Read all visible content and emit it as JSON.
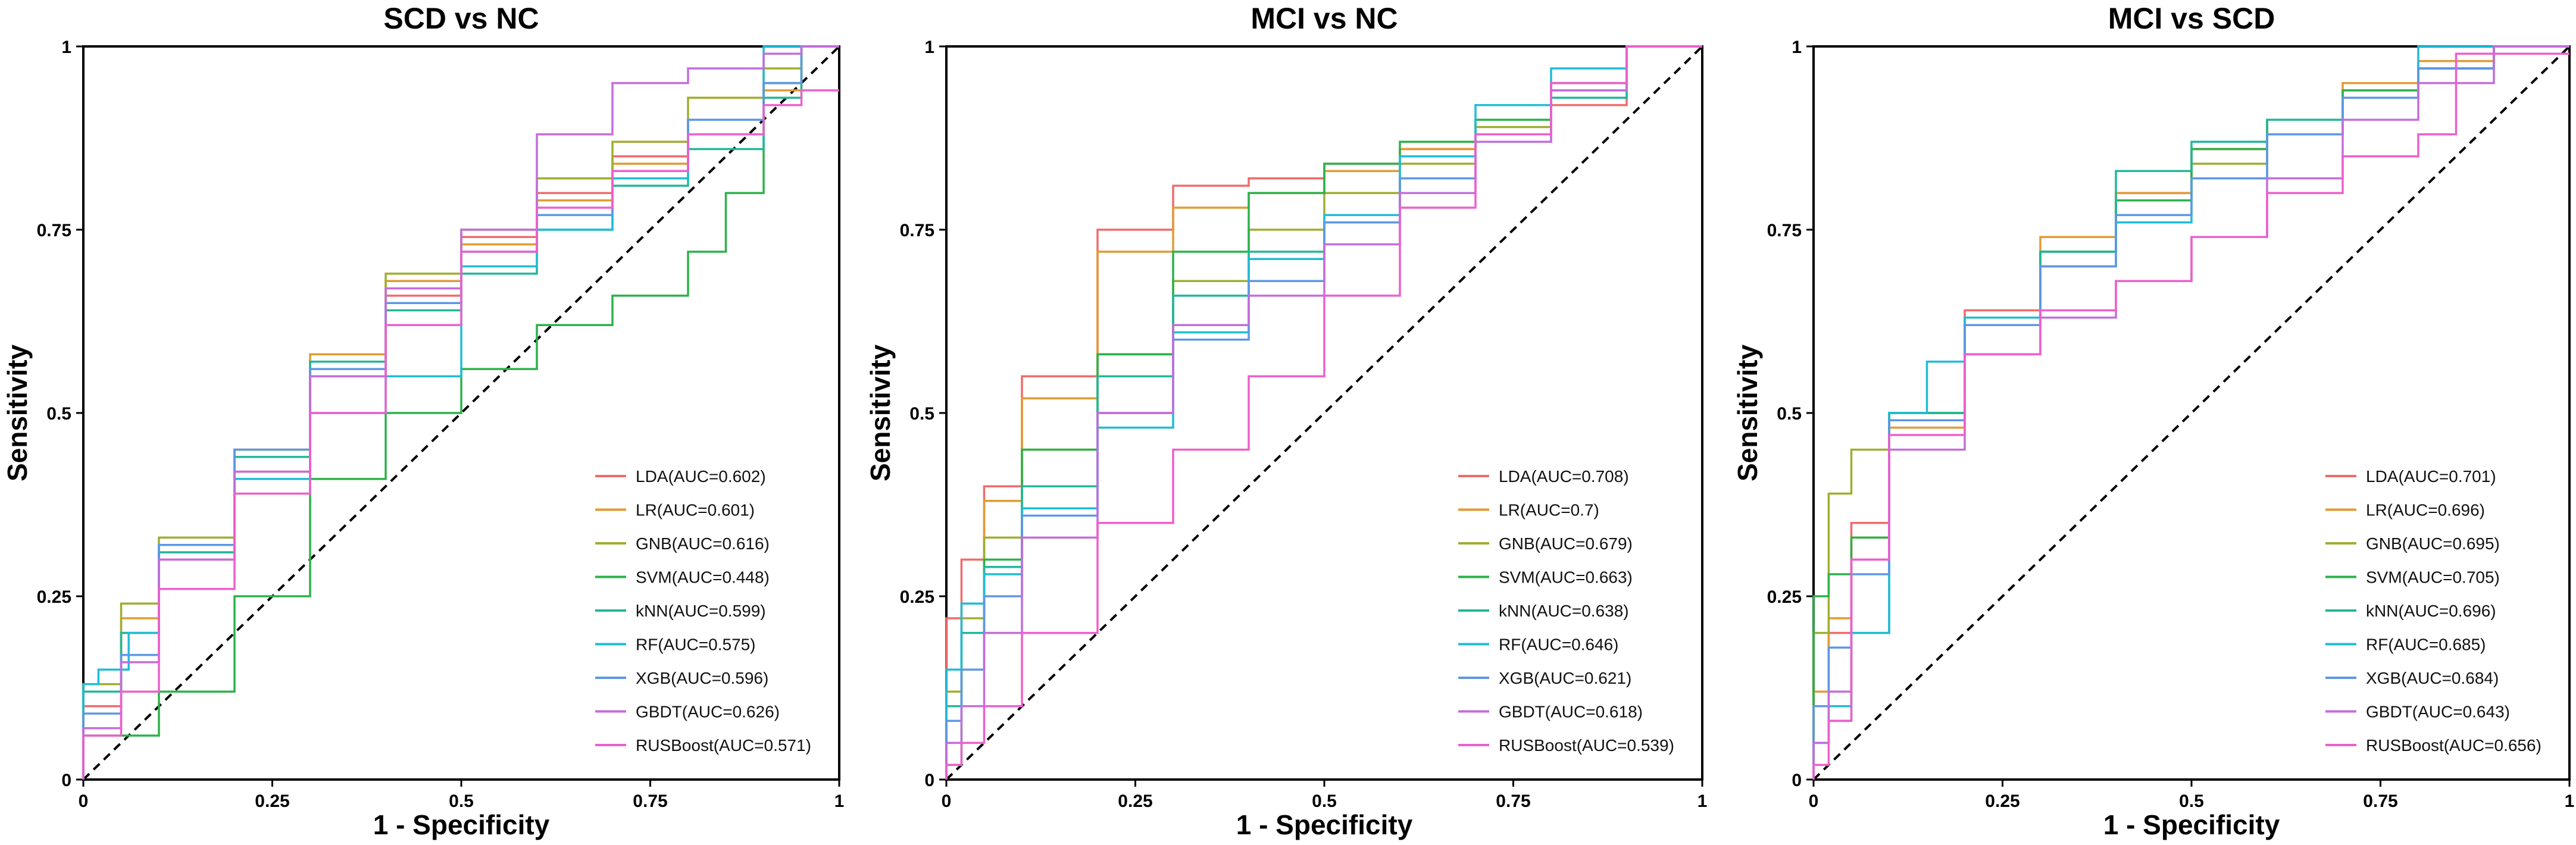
{
  "figure": {
    "name": "roc-curves-three-panels"
  },
  "chart_data": [
    {
      "type": "line",
      "title": "SCD vs NC",
      "xlabel": "1 - Specificity",
      "ylabel": "Sensitivity",
      "xlim": [
        0,
        1
      ],
      "ylim": [
        0,
        1
      ],
      "xticks": [
        "0",
        "0.25",
        "0.5",
        "0.75",
        "1"
      ],
      "yticks": [
        "0",
        "0.25",
        "0.5",
        "0.75",
        "1"
      ],
      "legend_position": "bottom-right",
      "reference_line": "diagonal",
      "series": [
        {
          "name": "LDA(AUC=0.602)",
          "color": "#f06b6b",
          "x": [
            0,
            0.05,
            0.1,
            0.2,
            0.3,
            0.4,
            0.5,
            0.6,
            0.7,
            0.8,
            0.9,
            0.95,
            1
          ],
          "y": [
            0,
            0.1,
            0.2,
            0.3,
            0.42,
            0.55,
            0.66,
            0.74,
            0.8,
            0.85,
            0.9,
            0.95,
            1
          ]
        },
        {
          "name": "LR(AUC=0.601)",
          "color": "#e39a32",
          "x": [
            0,
            0.05,
            0.1,
            0.2,
            0.3,
            0.4,
            0.5,
            0.6,
            0.7,
            0.8,
            0.9,
            0.95,
            1
          ],
          "y": [
            0,
            0.12,
            0.22,
            0.31,
            0.45,
            0.58,
            0.68,
            0.73,
            0.79,
            0.84,
            0.88,
            0.94,
            1
          ]
        },
        {
          "name": "GNB(AUC=0.616)",
          "color": "#9fae2e",
          "x": [
            0,
            0.05,
            0.1,
            0.2,
            0.3,
            0.4,
            0.5,
            0.6,
            0.7,
            0.8,
            0.9,
            0.95,
            1
          ],
          "y": [
            0,
            0.13,
            0.24,
            0.33,
            0.45,
            0.57,
            0.69,
            0.75,
            0.82,
            0.87,
            0.93,
            0.97,
            1
          ]
        },
        {
          "name": "SVM(AUC=0.448)",
          "color": "#2bb24a",
          "x": [
            0,
            0.1,
            0.2,
            0.3,
            0.4,
            0.5,
            0.6,
            0.7,
            0.8,
            0.85,
            0.9,
            0.95,
            1
          ],
          "y": [
            0,
            0.06,
            0.12,
            0.25,
            0.41,
            0.5,
            0.56,
            0.62,
            0.66,
            0.72,
            0.8,
            0.95,
            1
          ]
        },
        {
          "name": "kNN(AUC=0.599)",
          "color": "#22b79a",
          "x": [
            0,
            0.05,
            0.1,
            0.2,
            0.3,
            0.4,
            0.5,
            0.6,
            0.7,
            0.8,
            0.9,
            0.95,
            1
          ],
          "y": [
            0,
            0.12,
            0.2,
            0.31,
            0.44,
            0.57,
            0.64,
            0.69,
            0.75,
            0.81,
            0.86,
            0.93,
            1
          ]
        },
        {
          "name": "RF(AUC=0.575)",
          "color": "#1fbcd8",
          "x": [
            0,
            0.02,
            0.06,
            0.1,
            0.2,
            0.3,
            0.4,
            0.5,
            0.6,
            0.7,
            0.8,
            0.9,
            1
          ],
          "y": [
            0,
            0.13,
            0.15,
            0.2,
            0.32,
            0.41,
            0.5,
            0.55,
            0.7,
            0.75,
            0.82,
            0.9,
            1
          ]
        },
        {
          "name": "XGB(AUC=0.596)",
          "color": "#5e97e6",
          "x": [
            0,
            0.05,
            0.1,
            0.2,
            0.3,
            0.4,
            0.5,
            0.6,
            0.7,
            0.8,
            0.9,
            0.95,
            1
          ],
          "y": [
            0,
            0.09,
            0.17,
            0.32,
            0.45,
            0.56,
            0.65,
            0.72,
            0.77,
            0.83,
            0.9,
            0.95,
            1
          ]
        },
        {
          "name": "GBDT(AUC=0.626)",
          "color": "#c46ddc",
          "x": [
            0,
            0.05,
            0.1,
            0.2,
            0.3,
            0.4,
            0.5,
            0.6,
            0.7,
            0.8,
            0.9,
            0.95,
            1
          ],
          "y": [
            0,
            0.07,
            0.16,
            0.3,
            0.42,
            0.55,
            0.67,
            0.75,
            0.88,
            0.95,
            0.97,
            0.99,
            1
          ]
        },
        {
          "name": "RUSBoost(AUC=0.571)",
          "color": "#ee5fcb",
          "x": [
            0,
            0.05,
            0.1,
            0.2,
            0.3,
            0.4,
            0.5,
            0.6,
            0.7,
            0.8,
            0.9,
            0.95,
            1
          ],
          "y": [
            0,
            0.06,
            0.12,
            0.26,
            0.39,
            0.5,
            0.62,
            0.72,
            0.78,
            0.83,
            0.88,
            0.92,
            0.94
          ]
        }
      ]
    },
    {
      "type": "line",
      "title": "MCI vs NC",
      "xlabel": "1 - Specificity",
      "ylabel": "Sensitivity",
      "xlim": [
        0,
        1
      ],
      "ylim": [
        0,
        1
      ],
      "xticks": [
        "0",
        "0.25",
        "0.5",
        "0.75",
        "1"
      ],
      "yticks": [
        "0",
        "0.25",
        "0.5",
        "0.75",
        "1"
      ],
      "legend_position": "bottom-right",
      "reference_line": "diagonal",
      "series": [
        {
          "name": "LDA(AUC=0.708)",
          "color": "#f06b6b",
          "x": [
            0,
            0.02,
            0.05,
            0.1,
            0.2,
            0.3,
            0.4,
            0.5,
            0.6,
            0.7,
            0.8,
            0.9,
            1
          ],
          "y": [
            0,
            0.22,
            0.3,
            0.4,
            0.55,
            0.75,
            0.81,
            0.82,
            0.84,
            0.86,
            0.87,
            0.92,
            1
          ]
        },
        {
          "name": "LR(AUC=0.7)",
          "color": "#e39a32",
          "x": [
            0,
            0.02,
            0.05,
            0.1,
            0.2,
            0.3,
            0.4,
            0.5,
            0.6,
            0.7,
            0.8,
            0.9,
            1
          ],
          "y": [
            0,
            0.12,
            0.24,
            0.38,
            0.52,
            0.72,
            0.78,
            0.8,
            0.83,
            0.86,
            0.9,
            0.95,
            1
          ]
        },
        {
          "name": "GNB(AUC=0.679)",
          "color": "#9fae2e",
          "x": [
            0,
            0.02,
            0.05,
            0.1,
            0.2,
            0.3,
            0.4,
            0.5,
            0.6,
            0.7,
            0.8,
            0.9,
            1
          ],
          "y": [
            0,
            0.12,
            0.22,
            0.33,
            0.45,
            0.58,
            0.68,
            0.75,
            0.8,
            0.84,
            0.89,
            0.94,
            1
          ]
        },
        {
          "name": "SVM(AUC=0.663)",
          "color": "#2bb24a",
          "x": [
            0,
            0.02,
            0.05,
            0.1,
            0.2,
            0.3,
            0.4,
            0.5,
            0.6,
            0.7,
            0.8,
            0.9,
            1
          ],
          "y": [
            0,
            0.02,
            0.15,
            0.3,
            0.45,
            0.58,
            0.72,
            0.8,
            0.84,
            0.87,
            0.9,
            0.95,
            1
          ]
        },
        {
          "name": "kNN(AUC=0.638)",
          "color": "#22b79a",
          "x": [
            0,
            0.02,
            0.05,
            0.1,
            0.2,
            0.3,
            0.4,
            0.5,
            0.6,
            0.7,
            0.8,
            0.9,
            1
          ],
          "y": [
            0,
            0.1,
            0.2,
            0.29,
            0.4,
            0.55,
            0.66,
            0.72,
            0.76,
            0.82,
            0.88,
            0.93,
            1
          ]
        },
        {
          "name": "RF(AUC=0.646)",
          "color": "#1fbcd8",
          "x": [
            0,
            0.02,
            0.05,
            0.1,
            0.2,
            0.3,
            0.4,
            0.5,
            0.6,
            0.7,
            0.8,
            0.9,
            1
          ],
          "y": [
            0,
            0.15,
            0.24,
            0.28,
            0.37,
            0.48,
            0.61,
            0.71,
            0.77,
            0.85,
            0.92,
            0.97,
            1
          ]
        },
        {
          "name": "XGB(AUC=0.621)",
          "color": "#5e97e6",
          "x": [
            0,
            0.02,
            0.05,
            0.1,
            0.2,
            0.3,
            0.4,
            0.5,
            0.6,
            0.7,
            0.8,
            0.9,
            1
          ],
          "y": [
            0,
            0.08,
            0.15,
            0.25,
            0.36,
            0.5,
            0.6,
            0.68,
            0.76,
            0.82,
            0.88,
            0.94,
            1
          ]
        },
        {
          "name": "GBDT(AUC=0.618)",
          "color": "#c46ddc",
          "x": [
            0,
            0.02,
            0.05,
            0.1,
            0.2,
            0.3,
            0.4,
            0.5,
            0.6,
            0.7,
            0.8,
            0.9,
            1
          ],
          "y": [
            0,
            0.05,
            0.1,
            0.2,
            0.33,
            0.5,
            0.62,
            0.66,
            0.73,
            0.8,
            0.87,
            0.94,
            1
          ]
        },
        {
          "name": "RUSBoost(AUC=0.539)",
          "color": "#ee5fcb",
          "x": [
            0,
            0.02,
            0.05,
            0.1,
            0.2,
            0.3,
            0.4,
            0.5,
            0.6,
            0.7,
            0.8,
            0.9,
            1
          ],
          "y": [
            0,
            0.02,
            0.05,
            0.1,
            0.2,
            0.35,
            0.45,
            0.55,
            0.66,
            0.78,
            0.88,
            0.95,
            1
          ]
        }
      ]
    },
    {
      "type": "line",
      "title": "MCI vs SCD",
      "xlabel": "1 - Specificity",
      "ylabel": "Sensitivity",
      "xlim": [
        0,
        1
      ],
      "ylim": [
        0,
        1
      ],
      "xticks": [
        "0",
        "0.25",
        "0.5",
        "0.75",
        "1"
      ],
      "yticks": [
        "0",
        "0.25",
        "0.5",
        "0.75",
        "1"
      ],
      "legend_position": "bottom-right",
      "reference_line": "diagonal",
      "series": [
        {
          "name": "LDA(AUC=0.701)",
          "color": "#f06b6b",
          "x": [
            0,
            0.02,
            0.05,
            0.1,
            0.2,
            0.3,
            0.4,
            0.5,
            0.6,
            0.7,
            0.8,
            0.9,
            1
          ],
          "y": [
            0,
            0.1,
            0.2,
            0.35,
            0.5,
            0.64,
            0.72,
            0.8,
            0.86,
            0.9,
            0.94,
            0.97,
            1
          ]
        },
        {
          "name": "LR(AUC=0.696)",
          "color": "#e39a32",
          "x": [
            0,
            0.02,
            0.05,
            0.1,
            0.2,
            0.3,
            0.4,
            0.5,
            0.6,
            0.7,
            0.8,
            0.9,
            1
          ],
          "y": [
            0,
            0.12,
            0.22,
            0.33,
            0.48,
            0.63,
            0.74,
            0.8,
            0.86,
            0.9,
            0.95,
            0.98,
            1
          ]
        },
        {
          "name": "GNB(AUC=0.695)",
          "color": "#9fae2e",
          "x": [
            0,
            0.02,
            0.05,
            0.1,
            0.2,
            0.3,
            0.4,
            0.5,
            0.6,
            0.7,
            0.8,
            0.9,
            1
          ],
          "y": [
            0,
            0.2,
            0.39,
            0.45,
            0.5,
            0.62,
            0.72,
            0.79,
            0.84,
            0.88,
            0.93,
            0.97,
            1
          ]
        },
        {
          "name": "SVM(AUC=0.705)",
          "color": "#2bb24a",
          "x": [
            0,
            0.02,
            0.05,
            0.1,
            0.2,
            0.3,
            0.4,
            0.5,
            0.6,
            0.7,
            0.8,
            0.9,
            1
          ],
          "y": [
            0,
            0.25,
            0.28,
            0.33,
            0.5,
            0.63,
            0.72,
            0.79,
            0.86,
            0.9,
            0.94,
            0.97,
            1
          ]
        },
        {
          "name": "kNN(AUC=0.696)",
          "color": "#22b79a",
          "x": [
            0,
            0.02,
            0.05,
            0.1,
            0.2,
            0.3,
            0.4,
            0.5,
            0.6,
            0.7,
            0.8,
            0.9,
            1
          ],
          "y": [
            0,
            0.05,
            0.08,
            0.2,
            0.5,
            0.62,
            0.72,
            0.83,
            0.87,
            0.9,
            0.93,
            0.97,
            1
          ]
        },
        {
          "name": "RF(AUC=0.685)",
          "color": "#1fbcd8",
          "x": [
            0,
            0.02,
            0.05,
            0.1,
            0.15,
            0.2,
            0.3,
            0.4,
            0.5,
            0.6,
            0.7,
            0.8,
            1
          ],
          "y": [
            0,
            0.05,
            0.1,
            0.2,
            0.5,
            0.57,
            0.63,
            0.7,
            0.76,
            0.82,
            0.88,
            0.93,
            1
          ]
        },
        {
          "name": "XGB(AUC=0.684)",
          "color": "#5e97e6",
          "x": [
            0,
            0.02,
            0.05,
            0.1,
            0.2,
            0.3,
            0.4,
            0.5,
            0.6,
            0.7,
            0.8,
            0.9,
            1
          ],
          "y": [
            0,
            0.1,
            0.18,
            0.28,
            0.49,
            0.62,
            0.7,
            0.77,
            0.82,
            0.88,
            0.93,
            0.97,
            1
          ]
        },
        {
          "name": "GBDT(AUC=0.643)",
          "color": "#c46ddc",
          "x": [
            0,
            0.02,
            0.05,
            0.1,
            0.2,
            0.3,
            0.4,
            0.5,
            0.6,
            0.7,
            0.8,
            0.9,
            1
          ],
          "y": [
            0,
            0.05,
            0.12,
            0.3,
            0.45,
            0.58,
            0.63,
            0.68,
            0.74,
            0.82,
            0.9,
            0.95,
            1
          ]
        },
        {
          "name": "RUSBoost(AUC=0.656)",
          "color": "#ee5fcb",
          "x": [
            0,
            0.02,
            0.05,
            0.1,
            0.2,
            0.3,
            0.4,
            0.5,
            0.6,
            0.7,
            0.8,
            0.85,
            1
          ],
          "y": [
            0,
            0.02,
            0.08,
            0.3,
            0.47,
            0.58,
            0.64,
            0.68,
            0.74,
            0.8,
            0.85,
            0.88,
            0.99
          ]
        }
      ]
    }
  ]
}
